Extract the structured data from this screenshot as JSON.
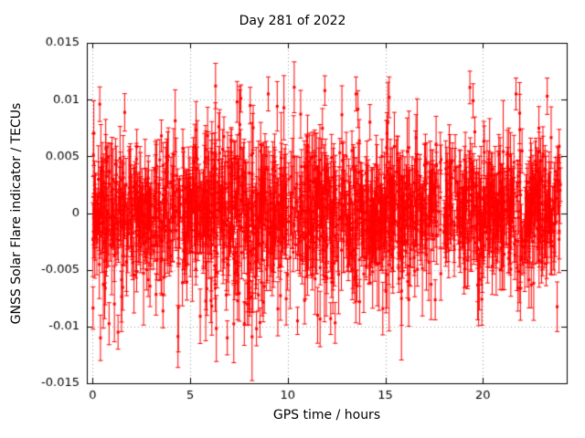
{
  "chart_data": {
    "type": "scatter",
    "title": "Day 281 of 2022",
    "xlabel": "GPS time / hours",
    "ylabel": "GNSS Solar Flare indicator / TECUs",
    "xlim": [
      -0.3,
      24.3
    ],
    "ylim": [
      -0.015,
      0.015
    ],
    "xticks": [
      0,
      5,
      10,
      15,
      20
    ],
    "xtick_labels": [
      "0",
      "5",
      "10",
      "15",
      "20"
    ],
    "yticks": [
      -0.015,
      -0.01,
      -0.005,
      0,
      0.005,
      0.01,
      0.015
    ],
    "ytick_labels": [
      "-0.015",
      "-0.01",
      "-0.005",
      "0",
      "0.005",
      "0.01",
      "0.015"
    ],
    "grid": true,
    "legend": "none",
    "marker": {
      "shape": "square",
      "color": "#ff0000",
      "size": 3
    },
    "error_bars": true,
    "series": {
      "name": "GNSS solar flare indicator",
      "x_range_hours": [
        0,
        24
      ],
      "center_value": 0,
      "typical_spread": 0.0025,
      "typical_error_bar": 0.002,
      "generator": {
        "seed": 281,
        "n_core": 1400,
        "core_sigma": 0.0022,
        "n_outer": 380,
        "outer_sigma": 0.0045,
        "err_base": 0.0012,
        "err_sigma": 0.0013,
        "bulges": [
          {
            "center": 7.6,
            "width": 1.1,
            "gain": 0.5
          },
          {
            "center": 12.0,
            "width": 1.6,
            "gain": 0.2
          }
        ]
      },
      "outliers": [
        {
          "x": 0.4,
          "y": -0.011,
          "err": 0.002
        },
        {
          "x": 1.3,
          "y": -0.0105,
          "err": 0.0015
        },
        {
          "x": 6.3,
          "y": 0.0112,
          "err": 0.002
        },
        {
          "x": 6.9,
          "y": -0.011,
          "err": 0.0015
        },
        {
          "x": 7.4,
          "y": 0.0098,
          "err": 0.0018
        },
        {
          "x": 7.6,
          "y": 0.0101,
          "err": 0.0012
        },
        {
          "x": 8.4,
          "y": -0.0102,
          "err": 0.0015
        },
        {
          "x": 9.0,
          "y": 0.0105,
          "err": 0.0015
        },
        {
          "x": 10.5,
          "y": -0.0095,
          "err": 0.0012
        },
        {
          "x": 11.9,
          "y": 0.0108,
          "err": 0.0013
        },
        {
          "x": 12.2,
          "y": -0.0093,
          "err": 0.0014
        },
        {
          "x": 13.5,
          "y": 0.0105,
          "err": 0.0015
        },
        {
          "x": 15.2,
          "y": 0.0102,
          "err": 0.0018
        },
        {
          "x": 19.5,
          "y": 0.0099,
          "err": 0.0015
        },
        {
          "x": 21.7,
          "y": 0.0105,
          "err": 0.0014
        },
        {
          "x": 23.3,
          "y": 0.0103,
          "err": 0.0016
        }
      ]
    }
  }
}
